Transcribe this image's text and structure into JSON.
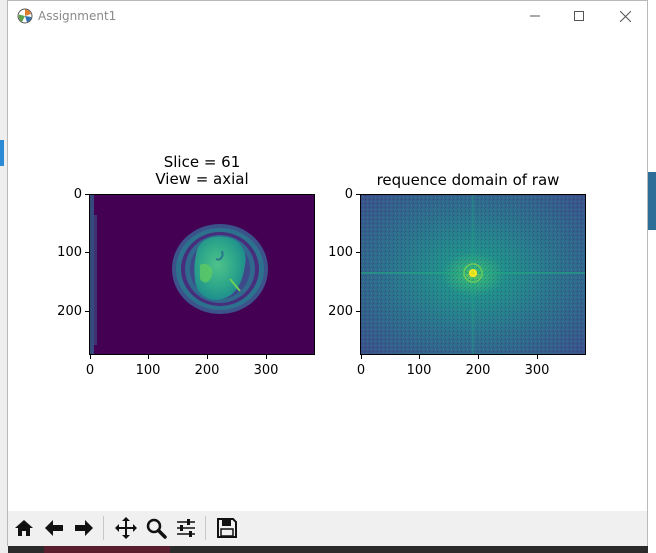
{
  "window": {
    "title": "Assignment1",
    "minimize_icon": "minimize-icon",
    "maximize_icon": "maximize-icon",
    "close_icon": "close-icon"
  },
  "figure": {
    "left_axes": {
      "title_line1": "Slice = 61",
      "title_line2": "View = axial",
      "yticks": [
        "0",
        "100",
        "200"
      ],
      "xticks": [
        "0",
        "100",
        "200",
        "300"
      ],
      "image": "brain MRI axial slice"
    },
    "right_axes": {
      "title": "requence domain of raw",
      "yticks": [
        "0",
        "100",
        "200"
      ],
      "xticks": [
        "0",
        "100",
        "200",
        "300"
      ],
      "image": "frequency domain spectrum"
    }
  },
  "toolbar": {
    "buttons": [
      {
        "name": "home-button",
        "icon": "home-icon"
      },
      {
        "name": "back-button",
        "icon": "arrow-left-icon"
      },
      {
        "name": "forward-button",
        "icon": "arrow-right-icon"
      },
      {
        "name": "pan-button",
        "icon": "move-icon"
      },
      {
        "name": "zoom-button",
        "icon": "magnifier-icon"
      },
      {
        "name": "configure-subplots-button",
        "icon": "sliders-icon"
      },
      {
        "name": "save-button",
        "icon": "floppy-disk-icon"
      }
    ]
  }
}
